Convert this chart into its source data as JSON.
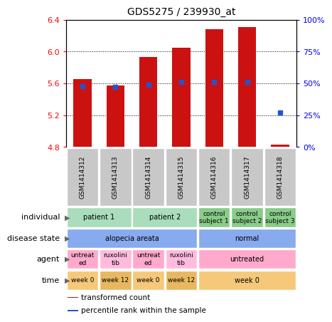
{
  "title": "GDS5275 / 239930_at",
  "samples": [
    "GSM1414312",
    "GSM1414313",
    "GSM1414314",
    "GSM1414315",
    "GSM1414316",
    "GSM1414317",
    "GSM1414318"
  ],
  "bar_values": [
    5.65,
    5.57,
    5.93,
    6.05,
    6.28,
    6.31,
    4.83
  ],
  "blue_dot_values": [
    48,
    47,
    49,
    51,
    51,
    51,
    27
  ],
  "ylim_left": [
    4.8,
    6.4
  ],
  "ylim_right": [
    0,
    100
  ],
  "yticks_left": [
    4.8,
    5.2,
    5.6,
    6.0,
    6.4
  ],
  "yticks_right": [
    0,
    25,
    50,
    75,
    100
  ],
  "bar_color": "#cc1111",
  "dot_color": "#2255cc",
  "bar_width": 0.55,
  "gray_color": "#c8c8c8",
  "individual_groups": [
    {
      "label": "patient 1",
      "start": 0,
      "end": 2,
      "color": "#aaddbb"
    },
    {
      "label": "patient 2",
      "start": 2,
      "end": 4,
      "color": "#aaddbb"
    },
    {
      "label": "control\nsubject 1",
      "start": 4,
      "end": 5,
      "color": "#88cc88"
    },
    {
      "label": "control\nsubject 2",
      "start": 5,
      "end": 6,
      "color": "#88cc88"
    },
    {
      "label": "control\nsubject 3",
      "start": 6,
      "end": 7,
      "color": "#88cc88"
    }
  ],
  "disease_groups": [
    {
      "label": "alopecia areata",
      "start": 0,
      "end": 4,
      "color": "#88aaee"
    },
    {
      "label": "normal",
      "start": 4,
      "end": 7,
      "color": "#88aaee"
    }
  ],
  "agent_groups": [
    {
      "label": "untreat\ned",
      "start": 0,
      "end": 1,
      "color": "#ffaacc"
    },
    {
      "label": "ruxolini\ntib",
      "start": 1,
      "end": 2,
      "color": "#ffbbdd"
    },
    {
      "label": "untreat\ned",
      "start": 2,
      "end": 3,
      "color": "#ffaacc"
    },
    {
      "label": "ruxolini\ntib",
      "start": 3,
      "end": 4,
      "color": "#ffbbdd"
    },
    {
      "label": "untreated",
      "start": 4,
      "end": 7,
      "color": "#ffaacc"
    }
  ],
  "time_groups": [
    {
      "label": "week 0",
      "start": 0,
      "end": 1,
      "color": "#f5c87a"
    },
    {
      "label": "week 12",
      "start": 1,
      "end": 2,
      "color": "#e8b860"
    },
    {
      "label": "week 0",
      "start": 2,
      "end": 3,
      "color": "#f5c87a"
    },
    {
      "label": "week 12",
      "start": 3,
      "end": 4,
      "color": "#e8b860"
    },
    {
      "label": "week 0",
      "start": 4,
      "end": 7,
      "color": "#f5c87a"
    }
  ],
  "row_labels": [
    "individual",
    "disease state",
    "agent",
    "time"
  ],
  "legend_items": [
    {
      "color": "#cc1111",
      "label": "transformed count"
    },
    {
      "color": "#2255cc",
      "label": "percentile rank within the sample"
    }
  ]
}
